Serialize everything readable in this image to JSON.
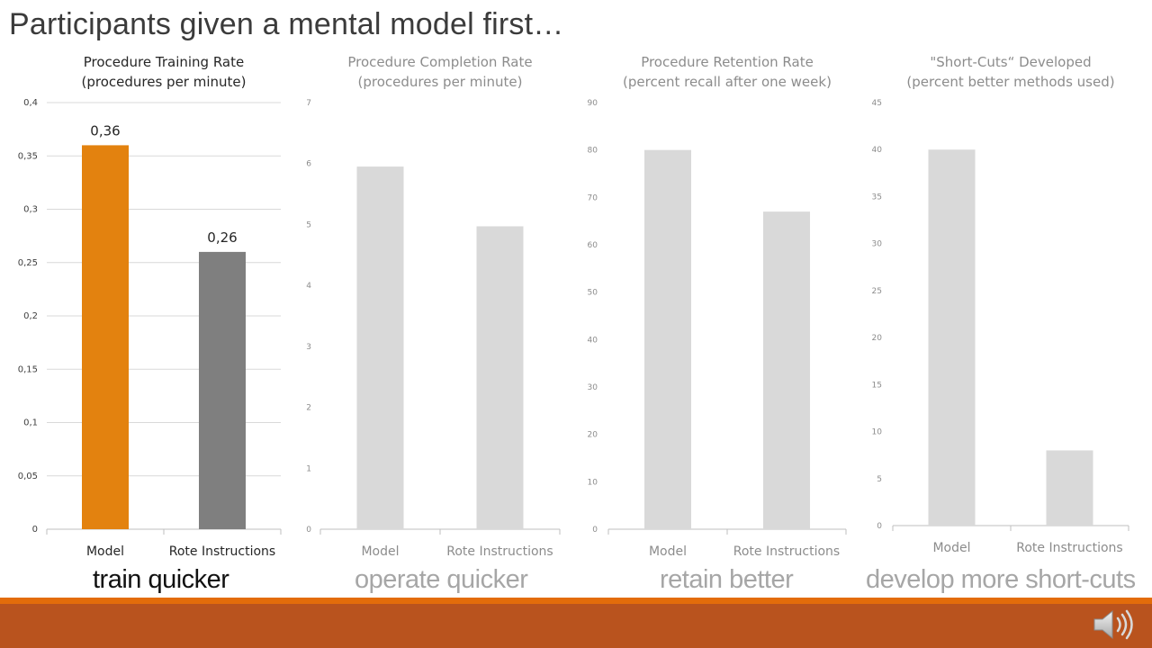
{
  "slide": {
    "title": "Participants given a mental model first…"
  },
  "captions": [
    {
      "text": "train quicker",
      "color": "#111111"
    },
    {
      "text": "operate quicker",
      "color": "#a6a6a6"
    },
    {
      "text": "retain better",
      "color": "#a6a6a6"
    },
    {
      "text": "develop more short-cuts",
      "color": "#a6a6a6"
    }
  ],
  "colors": {
    "model_highlight": "#e3820f",
    "rote_highlight": "#7f7f7f",
    "muted_bar": "#d9d9d9",
    "footer_bar": "#b9531e",
    "footer_line": "#e36c0a"
  },
  "chart_data": [
    {
      "type": "bar",
      "title": [
        "Procedure Training Rate",
        "(procedures per minute)"
      ],
      "categories": [
        "Model",
        "Rote Instructions"
      ],
      "values": [
        0.36,
        0.26
      ],
      "data_labels": [
        "0,36",
        "0,26"
      ],
      "ylim": [
        0,
        0.4
      ],
      "yticks": [
        0,
        0.05,
        0.1,
        0.15,
        0.2,
        0.25,
        0.3,
        0.35,
        0.4
      ],
      "ytick_labels": [
        "0",
        "0,05",
        "0,1",
        "0,15",
        "0,2",
        "0,25",
        "0,3",
        "0,35",
        "0,4"
      ],
      "grid": true,
      "highlighted": true
    },
    {
      "type": "bar",
      "title": [
        "Procedure Completion Rate",
        "(procedures per minute)"
      ],
      "categories": [
        "Model",
        "Rote Instructions"
      ],
      "values": [
        5.95,
        4.97
      ],
      "data_labels": [],
      "ylim": [
        0,
        7
      ],
      "yticks": [
        0,
        1,
        2,
        3,
        4,
        5,
        6,
        7
      ],
      "ytick_labels": [
        "0",
        "1",
        "2",
        "3",
        "4",
        "5",
        "6",
        "7"
      ],
      "grid": false,
      "highlighted": false
    },
    {
      "type": "bar",
      "title": [
        "Procedure Retention Rate",
        "(percent recall after one week)"
      ],
      "categories": [
        "Model",
        "Rote Instructions"
      ],
      "values": [
        80,
        67
      ],
      "data_labels": [],
      "ylim": [
        0,
        90
      ],
      "yticks": [
        0,
        10,
        20,
        30,
        40,
        50,
        60,
        70,
        80,
        90
      ],
      "ytick_labels": [
        "0",
        "10",
        "20",
        "30",
        "40",
        "50",
        "60",
        "70",
        "80",
        "90"
      ],
      "grid": false,
      "highlighted": false
    },
    {
      "type": "bar",
      "title": [
        "\"Short-Cuts“ Developed",
        "(percent better methods used)"
      ],
      "categories": [
        "Model",
        "Rote Instructions"
      ],
      "values": [
        40,
        8
      ],
      "data_labels": [],
      "ylim": [
        0,
        45
      ],
      "yticks": [
        0,
        5,
        10,
        15,
        20,
        25,
        30,
        35,
        40,
        45
      ],
      "ytick_labels": [
        "0",
        "5",
        "10",
        "15",
        "20",
        "25",
        "30",
        "35",
        "40",
        "45"
      ],
      "grid": false,
      "highlighted": false
    }
  ],
  "media": {
    "icon": "speaker-icon"
  }
}
